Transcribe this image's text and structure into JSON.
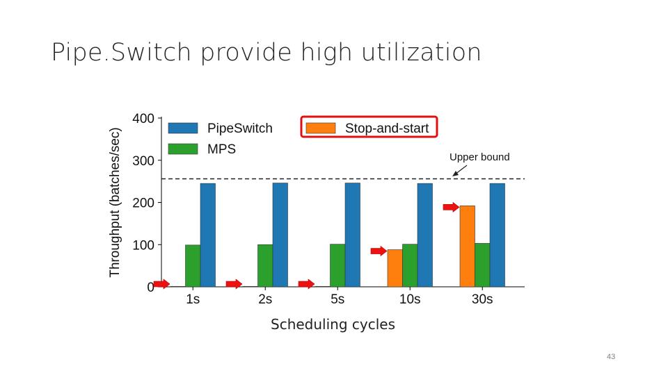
{
  "slide": {
    "title": "Pipe.Switch provide high utilization",
    "caption": "Scheduling cycles",
    "page_number": "43"
  },
  "colors": {
    "pipeswitch": "#1f77b4",
    "mps": "#2ca02c",
    "stop_and_start": "#ff7f0e",
    "highlight": "#e01010",
    "arrow": "#ee1111"
  },
  "chart_data": {
    "type": "bar",
    "title": "",
    "xlabel": "",
    "ylabel": "Throughput (batches/sec)",
    "ylim": [
      0,
      400
    ],
    "yticks": [
      0,
      100,
      200,
      300,
      400
    ],
    "categories": [
      "1s",
      "2s",
      "5s",
      "10s",
      "30s"
    ],
    "series": [
      {
        "name": "Stop-and-start",
        "color_key": "stop_and_start",
        "values": [
          1,
          1,
          1,
          88,
          192
        ],
        "highlighted_in_legend": true
      },
      {
        "name": "MPS",
        "color_key": "mps",
        "values": [
          99,
          100,
          101,
          101,
          103
        ]
      },
      {
        "name": "PipeSwitch",
        "color_key": "pipeswitch",
        "values": [
          245,
          246,
          246,
          245,
          245
        ]
      }
    ],
    "reference_line": {
      "label": "Upper bound",
      "value": 256,
      "style": "dashed"
    },
    "legend_order": [
      "PipeSwitch",
      "MPS",
      "Stop-and-start"
    ],
    "legend_placement": "top",
    "annotations": [
      {
        "type": "red-arrow",
        "category": "1s",
        "points_to": "Stop-and-start"
      },
      {
        "type": "red-arrow",
        "category": "2s",
        "points_to": "Stop-and-start"
      },
      {
        "type": "red-arrow",
        "category": "5s",
        "points_to": "Stop-and-start"
      },
      {
        "type": "red-arrow",
        "category": "10s",
        "points_to": "Stop-and-start"
      },
      {
        "type": "red-arrow",
        "category": "30s",
        "points_to": "Stop-and-start"
      }
    ]
  }
}
